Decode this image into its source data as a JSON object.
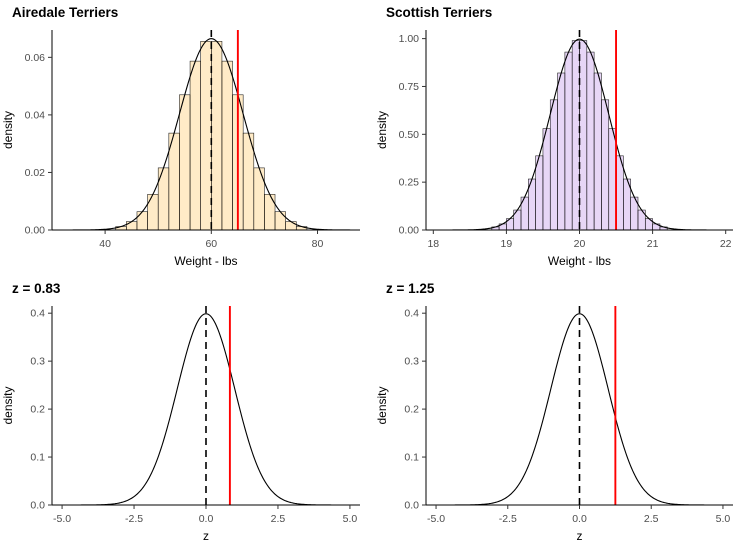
{
  "page": {
    "background": "#ffffff",
    "layout": "2x2 panel grid of R/ggplot style density plots, no legend, no gridlines"
  },
  "chart_data": [
    {
      "type": "area",
      "subtype": "histogram-with-normal-density",
      "title": "Airedale Terriers",
      "xlabel": "Weight - lbs",
      "ylabel": "density",
      "xlim": [
        30,
        88
      ],
      "ylim": [
        0,
        0.0695
      ],
      "xticks": [
        40,
        60,
        80
      ],
      "xtick_labels": [
        "40",
        "60",
        "80"
      ],
      "yticks": [
        0,
        0.02,
        0.04,
        0.06
      ],
      "ytick_labels": [
        "0.00",
        "0.02",
        "0.04",
        "0.06"
      ],
      "normal_mean": 60,
      "normal_sd": 6,
      "peak_density": 0.0665,
      "histogram": {
        "start": 42,
        "end": 78,
        "binwidth": 2,
        "fill": "rgba(255,165,0,0.22)",
        "stroke": "rgba(0,0,0,0.85)"
      },
      "mean_line_x": 60,
      "red_line_x": 65,
      "red_line_color": "#ff0000",
      "mean_line_color": "#000000",
      "curve_color": "#000000"
    },
    {
      "type": "area",
      "subtype": "histogram-with-normal-density",
      "title": "Scottish Terriers",
      "xlabel": "Weight - lbs",
      "ylabel": "density",
      "xlim": [
        17.9,
        22.1
      ],
      "ylim": [
        0,
        1.045
      ],
      "xticks": [
        18,
        19,
        20,
        21,
        22
      ],
      "xtick_labels": [
        "18",
        "19",
        "20",
        "21",
        "22"
      ],
      "yticks": [
        0,
        0.25,
        0.5,
        0.75,
        1.0
      ],
      "ytick_labels": [
        "0.00",
        "0.25",
        "0.50",
        "0.75",
        "1.00"
      ],
      "normal_mean": 20,
      "normal_sd": 0.4,
      "peak_density": 0.997,
      "histogram": {
        "start": 18.8,
        "end": 21.2,
        "binwidth": 0.1,
        "fill": "rgba(160,90,220,0.25)",
        "stroke": "rgba(0,0,0,0.85)"
      },
      "mean_line_x": 20,
      "red_line_x": 20.5,
      "red_line_color": "#ff0000",
      "mean_line_color": "#000000",
      "curve_color": "#000000"
    },
    {
      "type": "line",
      "subtype": "standard-normal-density",
      "title": "z = 0.83",
      "xlabel": "z",
      "ylabel": "density",
      "xlim": [
        -5.35,
        5.35
      ],
      "ylim": [
        0,
        0.415
      ],
      "xticks": [
        -5,
        -2.5,
        0,
        2.5,
        5
      ],
      "xtick_labels": [
        "-5.0",
        "-2.5",
        "0.0",
        "2.5",
        "5.0"
      ],
      "yticks": [
        0,
        0.1,
        0.2,
        0.3,
        0.4
      ],
      "ytick_labels": [
        "0.0",
        "0.1",
        "0.2",
        "0.3",
        "0.4"
      ],
      "normal_mean": 0,
      "normal_sd": 1,
      "peak_density": 0.399,
      "histogram": null,
      "mean_line_x": 0,
      "red_line_x": 0.83,
      "red_line_color": "#ff0000",
      "mean_line_color": "#000000",
      "curve_color": "#000000"
    },
    {
      "type": "line",
      "subtype": "standard-normal-density",
      "title": "z = 1.25",
      "xlabel": "z",
      "ylabel": "density",
      "xlim": [
        -5.35,
        5.35
      ],
      "ylim": [
        0,
        0.415
      ],
      "xticks": [
        -5,
        -2.5,
        0,
        2.5,
        5
      ],
      "xtick_labels": [
        "-5.0",
        "-2.5",
        "0.0",
        "2.5",
        "5.0"
      ],
      "yticks": [
        0,
        0.1,
        0.2,
        0.3,
        0.4
      ],
      "ytick_labels": [
        "0.0",
        "0.1",
        "0.2",
        "0.3",
        "0.4"
      ],
      "normal_mean": 0,
      "normal_sd": 1,
      "peak_density": 0.399,
      "histogram": null,
      "mean_line_x": 0,
      "red_line_x": 1.25,
      "red_line_color": "#ff0000",
      "mean_line_color": "#000000",
      "curve_color": "#000000"
    }
  ],
  "style": {
    "tick_label_color": "#4d4d4d",
    "axis_title_color": "#000000",
    "title_color": "#000000",
    "axis_line_color": "#000000"
  }
}
